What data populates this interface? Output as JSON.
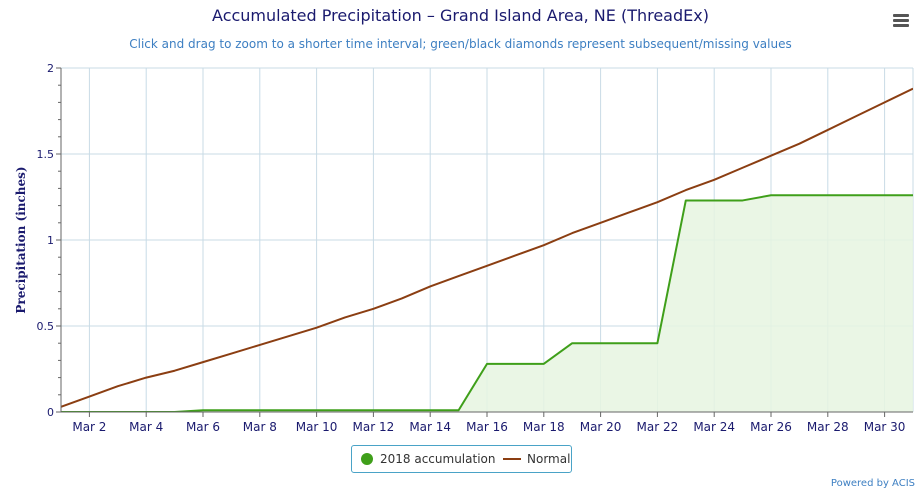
{
  "title": "Accumulated Precipitation – Grand Island Area, NE (ThreadEx)",
  "subtitle": "Click and drag to zoom to a shorter time interval; green/black diamonds represent subsequent/missing values",
  "menu_icon": "hamburger-menu-icon",
  "credit": "Powered by ACIS",
  "legend": {
    "series1": "2018 accumulation",
    "series2": "Normal"
  },
  "colors": {
    "accumulation": "#3f9f1a",
    "accumulation_fill": "#e6f4e0",
    "normal": "#8b3e12",
    "grid": "#c8dbe6",
    "axis_text": "#1a1a6e"
  },
  "chart_data": {
    "type": "line",
    "ylabel": "Precipitation (inches)",
    "xlabel": "",
    "ylim": [
      0,
      2
    ],
    "xlim": [
      1,
      31
    ],
    "x_ticks": [
      "Mar 2",
      "Mar 4",
      "Mar 6",
      "Mar 8",
      "Mar 10",
      "Mar 12",
      "Mar 14",
      "Mar 16",
      "Mar 18",
      "Mar 20",
      "Mar 22",
      "Mar 24",
      "Mar 26",
      "Mar 28",
      "Mar 30"
    ],
    "x_tick_days": [
      2,
      4,
      6,
      8,
      10,
      12,
      14,
      16,
      18,
      20,
      22,
      24,
      26,
      28,
      30
    ],
    "y_ticks": [
      "0",
      "0.5",
      "1",
      "1.5",
      "2"
    ],
    "y_tick_values": [
      0,
      0.5,
      1,
      1.5,
      2
    ],
    "grid": true,
    "legend_position": "bottom-center",
    "series": [
      {
        "name": "2018 accumulation",
        "x": [
          1,
          2,
          3,
          4,
          5,
          6,
          7,
          8,
          9,
          10,
          11,
          12,
          13,
          14,
          15,
          16,
          17,
          18,
          19,
          20,
          21,
          22,
          23,
          24,
          25,
          26,
          27,
          28,
          29,
          30,
          31
        ],
        "values": [
          0,
          0,
          0,
          0,
          0,
          0.01,
          0.01,
          0.01,
          0.01,
          0.01,
          0.01,
          0.01,
          0.01,
          0.01,
          0.01,
          0.28,
          0.28,
          0.28,
          0.4,
          0.4,
          0.4,
          0.4,
          1.23,
          1.23,
          1.23,
          1.26,
          1.26,
          1.26,
          1.26,
          1.26,
          1.26
        ]
      },
      {
        "name": "Normal",
        "x": [
          1,
          2,
          3,
          4,
          5,
          6,
          7,
          8,
          9,
          10,
          11,
          12,
          13,
          14,
          15,
          16,
          17,
          18,
          19,
          20,
          21,
          22,
          23,
          24,
          25,
          26,
          27,
          28,
          29,
          30,
          31
        ],
        "values": [
          0.03,
          0.09,
          0.15,
          0.2,
          0.24,
          0.29,
          0.34,
          0.39,
          0.44,
          0.49,
          0.55,
          0.6,
          0.66,
          0.73,
          0.79,
          0.85,
          0.91,
          0.97,
          1.04,
          1.1,
          1.16,
          1.22,
          1.29,
          1.35,
          1.42,
          1.49,
          1.56,
          1.64,
          1.72,
          1.8,
          1.88
        ]
      }
    ]
  }
}
